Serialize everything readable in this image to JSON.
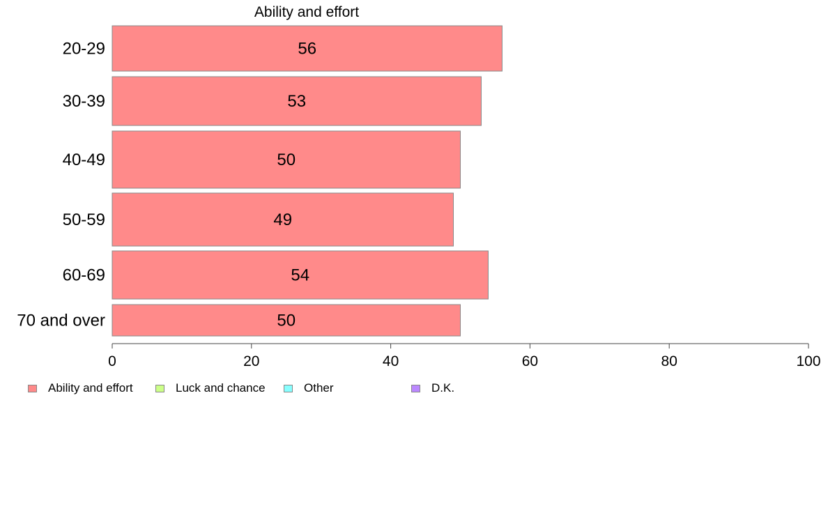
{
  "chart_data": {
    "type": "bar",
    "orientation": "horizontal",
    "stacked": true,
    "title": "",
    "xlabel": "",
    "ylabel": "",
    "xlim": [
      0,
      100
    ],
    "x_ticks": [
      "0",
      "20",
      "40",
      "60",
      "80",
      "100"
    ],
    "categories": [
      "20-29",
      "30-39",
      "40-49",
      "50-59",
      "60-69",
      "70 and over"
    ],
    "series": [
      {
        "name": "Ability and effort",
        "color": "#ff8a8a",
        "values": [
          56,
          53,
          50,
          49,
          54,
          50
        ],
        "data_labels": [
          "56",
          "53",
          "50",
          "49",
          "54",
          "50"
        ]
      }
    ],
    "annotation": "Ability and effort",
    "legend": {
      "placement": "bottom-left",
      "items": [
        {
          "label": "Ability and effort",
          "color": "#ff8a8a"
        },
        {
          "label": "Luck and chance",
          "color": "#ccff88"
        },
        {
          "label": "Other",
          "color": "#88ffff"
        },
        {
          "label": "D.K.",
          "color": "#bb88ff"
        }
      ]
    },
    "grid": false
  }
}
